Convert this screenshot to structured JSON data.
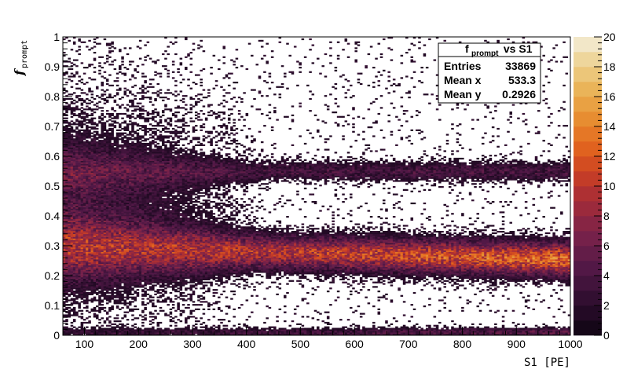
{
  "chart_data": {
    "type": "heatmap",
    "title": "",
    "xlabel": "S1  [PE]",
    "ylabel": "f",
    "ylabel_sub": "prompt",
    "xlim": [
      60,
      1000
    ],
    "ylim": [
      0,
      1
    ],
    "x_ticks": [
      100,
      200,
      300,
      400,
      500,
      600,
      700,
      800,
      900,
      1000
    ],
    "y_ticks": [
      0,
      0.1,
      0.2,
      0.3,
      0.4,
      0.5,
      0.6,
      0.7,
      0.8,
      0.9,
      1
    ],
    "x_tick_labels": [
      "100",
      "200",
      "300",
      "400",
      "500",
      "600",
      "700",
      "800",
      "900",
      "1000"
    ],
    "y_tick_labels": [
      "0",
      "0.1",
      "0.2",
      "0.3",
      "0.4",
      "0.5",
      "0.6",
      "0.7",
      "0.8",
      "0.9",
      "1"
    ],
    "grid": false,
    "colorbar": {
      "min": 0,
      "max": 20,
      "ticks": [
        0,
        2,
        4,
        6,
        8,
        10,
        12,
        14,
        16,
        18,
        20
      ],
      "tick_labels": [
        "0",
        "2",
        "4",
        "6",
        "8",
        "10",
        "12",
        "14",
        "16",
        "18",
        "20"
      ],
      "placement": "right"
    },
    "bands": [
      {
        "y_center": 0.27,
        "y_width": 0.035,
        "peak_count": 12,
        "trend": "slightly decreasing with S1"
      },
      {
        "y_center": 0.55,
        "y_width": 0.02,
        "peak_count": 3
      },
      {
        "y_center": 0.01,
        "y_width": 0.01,
        "peak_count": 4
      }
    ],
    "stats_box": {
      "title_main": "f",
      "title_sub": "prompt",
      "title_rest": " vs S1",
      "rows": [
        {
          "label": "Entries",
          "value": "33869"
        },
        {
          "label": "Mean x",
          "value": "533.3"
        },
        {
          "label": "Mean y",
          "value": "0.2926"
        }
      ],
      "placement": "top-right"
    }
  }
}
